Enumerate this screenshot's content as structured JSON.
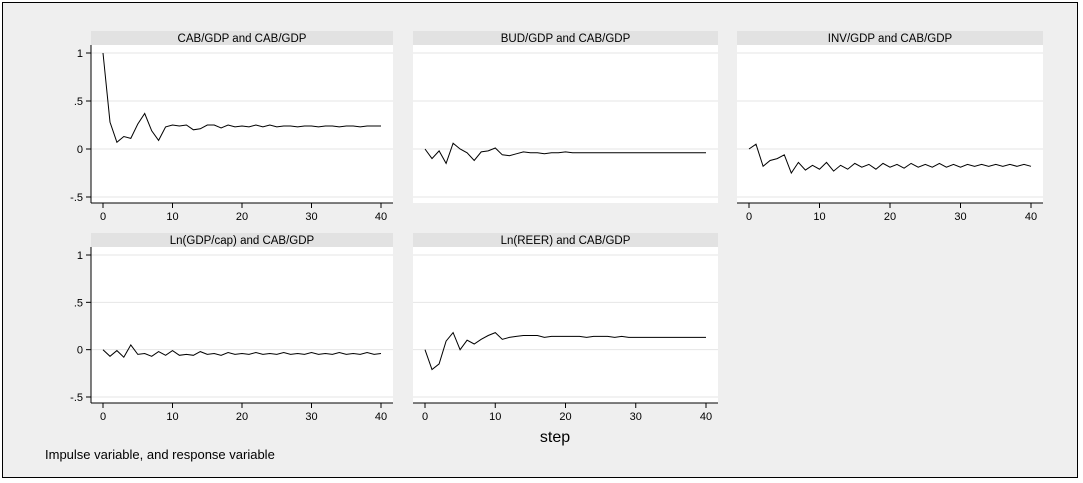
{
  "figure": {
    "note": "Impulse variable, and response variable",
    "xaxis_title": "step",
    "colors": {
      "background": "#efefef",
      "plot_area": "#ffffff",
      "title_strip": "#e2e2e2",
      "line": "#000000",
      "grid": "#e6e6e6"
    }
  },
  "chart_data": [
    {
      "type": "line",
      "title": "CAB/GDP and CAB/GDP",
      "xlim": [
        0,
        40
      ],
      "ylim": [
        -0.5,
        1
      ],
      "xticks": [
        "0",
        "10",
        "20",
        "30",
        "40"
      ],
      "yticks": [
        "-.5",
        "0",
        ".5",
        "1"
      ],
      "x": [
        0,
        1,
        2,
        3,
        4,
        5,
        6,
        7,
        8,
        9,
        10,
        11,
        12,
        13,
        14,
        15,
        16,
        17,
        18,
        19,
        20,
        21,
        22,
        23,
        24,
        25,
        26,
        27,
        28,
        29,
        30,
        31,
        32,
        33,
        34,
        35,
        36,
        37,
        38,
        39,
        40
      ],
      "y": [
        1.0,
        0.28,
        0.07,
        0.13,
        0.11,
        0.26,
        0.37,
        0.19,
        0.09,
        0.23,
        0.25,
        0.24,
        0.25,
        0.2,
        0.21,
        0.25,
        0.25,
        0.22,
        0.25,
        0.23,
        0.24,
        0.23,
        0.25,
        0.23,
        0.25,
        0.23,
        0.24,
        0.24,
        0.23,
        0.24,
        0.24,
        0.23,
        0.24,
        0.24,
        0.23,
        0.24,
        0.24,
        0.23,
        0.24,
        0.24,
        0.24
      ]
    },
    {
      "type": "line",
      "title": "BUD/GDP and CAB/GDP",
      "xlim": [
        0,
        40
      ],
      "ylim": [
        -0.5,
        1
      ],
      "xticks": [],
      "yticks": [],
      "x": [
        0,
        1,
        2,
        3,
        4,
        5,
        6,
        7,
        8,
        9,
        10,
        11,
        12,
        13,
        14,
        15,
        16,
        17,
        18,
        19,
        20,
        21,
        22,
        23,
        24,
        25,
        26,
        27,
        28,
        29,
        30,
        31,
        32,
        33,
        34,
        35,
        36,
        37,
        38,
        39,
        40
      ],
      "y": [
        0.0,
        -0.1,
        -0.02,
        -0.15,
        0.06,
        0.0,
        -0.04,
        -0.12,
        -0.03,
        -0.02,
        0.01,
        -0.06,
        -0.07,
        -0.05,
        -0.03,
        -0.04,
        -0.04,
        -0.05,
        -0.04,
        -0.04,
        -0.03,
        -0.04,
        -0.04,
        -0.04,
        -0.04,
        -0.04,
        -0.04,
        -0.04,
        -0.04,
        -0.04,
        -0.04,
        -0.04,
        -0.04,
        -0.04,
        -0.04,
        -0.04,
        -0.04,
        -0.04,
        -0.04,
        -0.04,
        -0.04
      ]
    },
    {
      "type": "line",
      "title": "INV/GDP and CAB/GDP",
      "xlim": [
        0,
        40
      ],
      "ylim": [
        -0.5,
        1
      ],
      "xticks": [
        "0",
        "10",
        "20",
        "30",
        "40"
      ],
      "yticks": [],
      "x": [
        0,
        1,
        2,
        3,
        4,
        5,
        6,
        7,
        8,
        9,
        10,
        11,
        12,
        13,
        14,
        15,
        16,
        17,
        18,
        19,
        20,
        21,
        22,
        23,
        24,
        25,
        26,
        27,
        28,
        29,
        30,
        31,
        32,
        33,
        34,
        35,
        36,
        37,
        38,
        39,
        40
      ],
      "y": [
        0.0,
        0.05,
        -0.18,
        -0.12,
        -0.1,
        -0.06,
        -0.25,
        -0.14,
        -0.22,
        -0.17,
        -0.21,
        -0.14,
        -0.23,
        -0.17,
        -0.21,
        -0.15,
        -0.19,
        -0.16,
        -0.21,
        -0.15,
        -0.19,
        -0.16,
        -0.2,
        -0.15,
        -0.19,
        -0.16,
        -0.19,
        -0.15,
        -0.19,
        -0.16,
        -0.19,
        -0.16,
        -0.18,
        -0.16,
        -0.18,
        -0.16,
        -0.18,
        -0.16,
        -0.18,
        -0.16,
        -0.18
      ]
    },
    {
      "type": "line",
      "title": "Ln(GDP/cap) and CAB/GDP",
      "xlim": [
        0,
        40
      ],
      "ylim": [
        -0.5,
        1
      ],
      "xticks": [
        "0",
        "10",
        "20",
        "30",
        "40"
      ],
      "yticks": [
        "-.5",
        "0",
        ".5",
        "1"
      ],
      "x": [
        0,
        1,
        2,
        3,
        4,
        5,
        6,
        7,
        8,
        9,
        10,
        11,
        12,
        13,
        14,
        15,
        16,
        17,
        18,
        19,
        20,
        21,
        22,
        23,
        24,
        25,
        26,
        27,
        28,
        29,
        30,
        31,
        32,
        33,
        34,
        35,
        36,
        37,
        38,
        39,
        40
      ],
      "y": [
        0.0,
        -0.07,
        -0.01,
        -0.08,
        0.05,
        -0.05,
        -0.04,
        -0.07,
        -0.02,
        -0.06,
        -0.01,
        -0.06,
        -0.05,
        -0.06,
        -0.02,
        -0.05,
        -0.04,
        -0.06,
        -0.03,
        -0.05,
        -0.04,
        -0.05,
        -0.03,
        -0.05,
        -0.04,
        -0.05,
        -0.03,
        -0.05,
        -0.04,
        -0.05,
        -0.03,
        -0.05,
        -0.04,
        -0.05,
        -0.03,
        -0.05,
        -0.04,
        -0.05,
        -0.03,
        -0.05,
        -0.04
      ]
    },
    {
      "type": "line",
      "title": "Ln(REER) and CAB/GDP",
      "xlim": [
        0,
        40
      ],
      "ylim": [
        -0.5,
        1
      ],
      "xticks": [
        "0",
        "10",
        "20",
        "30",
        "40"
      ],
      "yticks": [],
      "x": [
        0,
        1,
        2,
        3,
        4,
        5,
        6,
        7,
        8,
        9,
        10,
        11,
        12,
        13,
        14,
        15,
        16,
        17,
        18,
        19,
        20,
        21,
        22,
        23,
        24,
        25,
        26,
        27,
        28,
        29,
        30,
        31,
        32,
        33,
        34,
        35,
        36,
        37,
        38,
        39,
        40
      ],
      "y": [
        0.0,
        -0.21,
        -0.15,
        0.09,
        0.18,
        0.0,
        0.1,
        0.06,
        0.11,
        0.15,
        0.18,
        0.11,
        0.13,
        0.14,
        0.15,
        0.15,
        0.15,
        0.13,
        0.14,
        0.14,
        0.14,
        0.14,
        0.14,
        0.13,
        0.14,
        0.14,
        0.14,
        0.13,
        0.14,
        0.13,
        0.13,
        0.13,
        0.13,
        0.13,
        0.13,
        0.13,
        0.13,
        0.13,
        0.13,
        0.13,
        0.13
      ]
    }
  ]
}
